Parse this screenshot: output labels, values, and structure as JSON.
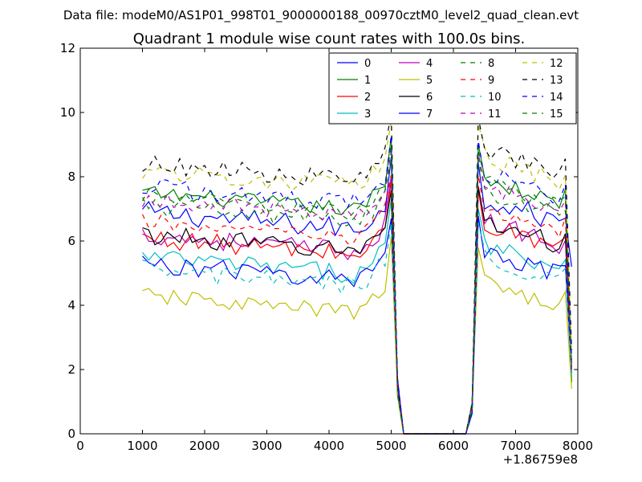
{
  "suptitle": "Data file: modeM0/AS1P01_998T01_9000000188_00970cztM0_level2_quad_clean.evt",
  "chart_data": {
    "type": "line",
    "title": "Quadrant 1 module wise count rates with 100.0s bins.",
    "xlabel": "",
    "ylabel": "",
    "x_offset_label": "+1.86759e8",
    "xlim": [
      0,
      8000
    ],
    "ylim": [
      0,
      12
    ],
    "xticks": [
      0,
      1000,
      2000,
      3000,
      4000,
      5000,
      6000,
      7000,
      8000
    ],
    "yticks": [
      0,
      2,
      4,
      6,
      8,
      10,
      12
    ],
    "grid": false,
    "legend_position": "top-right",
    "legend_columns": 4,
    "x": {
      "start": 1000,
      "step": 100,
      "count": 70
    },
    "gap_segment": {
      "x_start": 5100,
      "x_end": 6300,
      "values_at": [
        [
          5000,
          9.0
        ],
        [
          5100,
          2.0
        ],
        [
          5200,
          0.0
        ],
        [
          6200,
          0.0
        ],
        [
          6300,
          0.6
        ],
        [
          6400,
          9.0
        ]
      ]
    },
    "series": [
      {
        "name": "0",
        "color": "#0000ff",
        "style": "solid",
        "base": 6.9,
        "noise": 0.35,
        "drop_at": 7800,
        "end_value": 5.2
      },
      {
        "name": "1",
        "color": "#008000",
        "style": "solid",
        "base": 7.5,
        "noise": 0.25,
        "drop_at": 7800,
        "end_value": 1.6
      },
      {
        "name": "2",
        "color": "#ff0000",
        "style": "solid",
        "base": 6.1,
        "noise": 0.3,
        "drop_at": 7800,
        "end_value": 2.0
      },
      {
        "name": "3",
        "color": "#00bfbf",
        "style": "solid",
        "base": 5.5,
        "noise": 0.3,
        "drop_at": 7800,
        "end_value": 1.8
      },
      {
        "name": "4",
        "color": "#bf00bf",
        "style": "solid",
        "base": 6.2,
        "noise": 0.3,
        "drop_at": 7800,
        "end_value": 2.1
      },
      {
        "name": "5",
        "color": "#bfbf00",
        "style": "solid",
        "base": 4.3,
        "noise": 0.25,
        "drop_at": 7800,
        "end_value": 1.4
      },
      {
        "name": "6",
        "color": "#000000",
        "style": "solid",
        "base": 6.2,
        "noise": 0.3,
        "drop_at": 7800,
        "end_value": 2.2
      },
      {
        "name": "7",
        "color": "#0000ff",
        "style": "solid",
        "base": 5.3,
        "noise": 0.3,
        "drop_at": 7800,
        "end_value": 1.9
      },
      {
        "name": "8",
        "color": "#008000",
        "style": "dashed",
        "base": 7.1,
        "noise": 0.3,
        "drop_at": 7800,
        "end_value": 2.0
      },
      {
        "name": "9",
        "color": "#ff0000",
        "style": "dashed",
        "base": 6.6,
        "noise": 0.25,
        "drop_at": 7800,
        "end_value": 2.0
      },
      {
        "name": "10",
        "color": "#00bfbf",
        "style": "dashed",
        "base": 5.1,
        "noise": 0.3,
        "drop_at": 7800,
        "end_value": 1.8
      },
      {
        "name": "11",
        "color": "#bf00bf",
        "style": "dashed",
        "base": 7.3,
        "noise": 0.25,
        "drop_at": 7800,
        "end_value": 2.0
      },
      {
        "name": "12",
        "color": "#bfbf00",
        "style": "dashed",
        "base": 8.2,
        "noise": 0.3,
        "drop_at": 7800,
        "end_value": 2.4
      },
      {
        "name": "13",
        "color": "#000000",
        "style": "dashed",
        "base": 8.4,
        "noise": 0.3,
        "drop_at": 7800,
        "end_value": 2.6
      },
      {
        "name": "14",
        "color": "#0000ff",
        "style": "dashed",
        "base": 7.7,
        "noise": 0.3,
        "drop_at": 7800,
        "end_value": 2.3
      },
      {
        "name": "15",
        "color": "#008000",
        "style": "dashed",
        "base": 7.4,
        "noise": 0.25,
        "drop_at": 7800,
        "end_value": 2.1
      }
    ]
  }
}
